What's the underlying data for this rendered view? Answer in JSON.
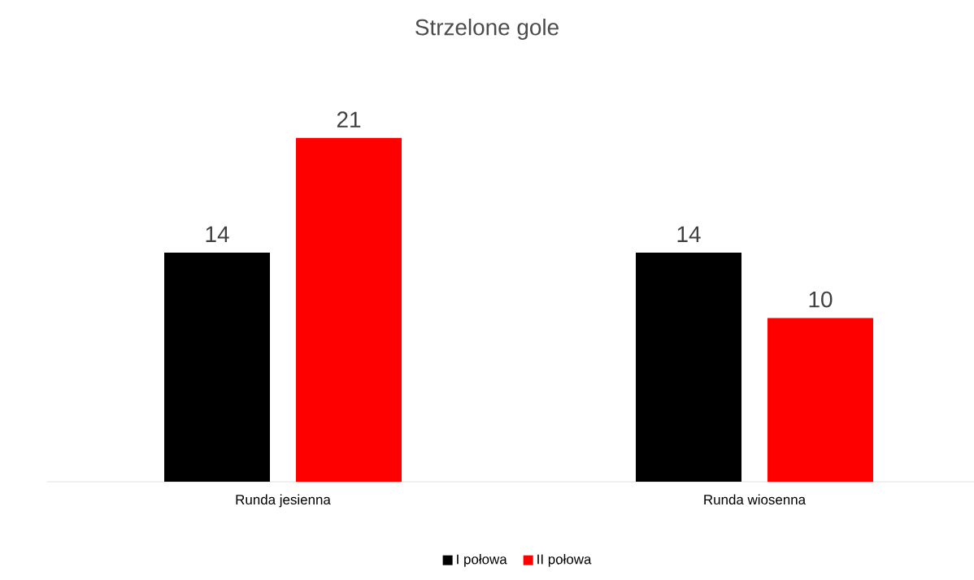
{
  "chart_data": {
    "type": "bar",
    "title": "Strzelone gole",
    "categories": [
      "Runda jesienna",
      "Runda wiosenna"
    ],
    "series": [
      {
        "name": "I połowa",
        "color": "#000000",
        "values": [
          14,
          14
        ]
      },
      {
        "name": "II połowa",
        "color": "#ff0000",
        "values": [
          21,
          10
        ]
      }
    ],
    "data_labels": true,
    "legend": "bottom"
  }
}
